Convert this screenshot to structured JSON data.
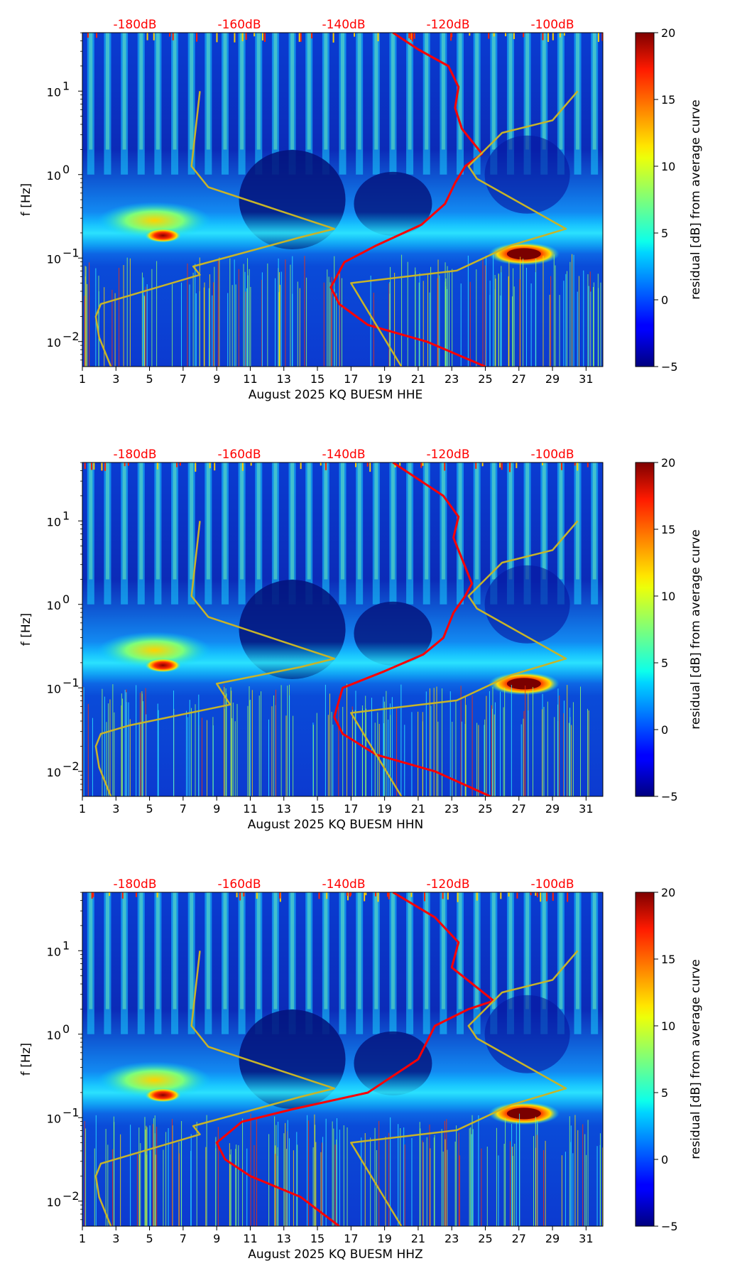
{
  "chart_data": [
    {
      "type": "heatmap",
      "title": "",
      "xlabel": "August 2025 KQ BUESM  HHE",
      "ylabel": "f [Hz]",
      "colorbar_label": "residual [dB] from average curve",
      "colorbar_ticks": [
        "20",
        "15",
        "10",
        "5",
        "0",
        "−5"
      ],
      "colorbar_range": [
        -5,
        20
      ],
      "x_ticks": [
        "1",
        "3",
        "5",
        "7",
        "9",
        "11",
        "13",
        "15",
        "17",
        "19",
        "21",
        "23",
        "25",
        "27",
        "29",
        "31"
      ],
      "y_tick_mantissa": [
        "10",
        "10",
        "10",
        "10"
      ],
      "y_tick_exponents": [
        "1",
        "0",
        "−1",
        "−2"
      ],
      "top_db_labels": [
        "-180dB",
        "-160dB",
        "-140dB",
        "-120dB",
        "-100dB"
      ],
      "xlim": [
        1,
        32
      ],
      "ylim_log10": [
        -2.3,
        1.7
      ],
      "series": [
        {
          "name": "red noise curve",
          "color": "#ff0000",
          "points": [
            [
              19.5,
              1.7
            ],
            [
              21,
              1.5
            ],
            [
              22.8,
              1.3
            ],
            [
              23.4,
              1.05
            ],
            [
              23.2,
              0.8
            ],
            [
              23.6,
              0.55
            ],
            [
              24.8,
              0.25
            ],
            [
              23.8,
              0.1
            ],
            [
              23.2,
              -0.1
            ],
            [
              22.6,
              -0.35
            ],
            [
              21.2,
              -0.6
            ],
            [
              18.5,
              -0.85
            ],
            [
              16.6,
              -1.05
            ],
            [
              15.8,
              -1.35
            ],
            [
              16.3,
              -1.55
            ],
            [
              18,
              -1.8
            ],
            [
              21.5,
              -2.0
            ],
            [
              25,
              -2.3
            ]
          ]
        },
        {
          "name": "olive model curve",
          "color": "#c8b428",
          "points": [
            [
              30.5,
              1.0
            ],
            [
              29,
              0.65
            ],
            [
              26,
              0.5
            ],
            [
              24,
              0.1
            ],
            [
              24.5,
              -0.05
            ],
            [
              29.8,
              -0.65
            ],
            [
              26.5,
              -0.85
            ],
            [
              23.3,
              -1.15
            ],
            [
              17,
              -1.3
            ],
            [
              20,
              -2.3
            ]
          ]
        },
        {
          "name": "olive model curve lower",
          "color": "#c8b428",
          "points": [
            [
              8,
              1.0
            ],
            [
              7.5,
              0.1
            ],
            [
              8.5,
              -0.15
            ],
            [
              16,
              -0.65
            ],
            [
              14,
              -0.75
            ],
            [
              7.6,
              -1.1
            ],
            [
              8,
              -1.2
            ],
            [
              3.8,
              -1.45
            ],
            [
              2.1,
              -1.55
            ],
            [
              1.8,
              -1.7
            ],
            [
              2,
              -1.95
            ],
            [
              2.7,
              -2.3
            ]
          ]
        }
      ]
    },
    {
      "type": "heatmap",
      "title": "",
      "xlabel": "August 2025 KQ BUESM  HHN",
      "ylabel": "f [Hz]",
      "colorbar_label": "residual [dB] from average curve",
      "colorbar_ticks": [
        "20",
        "15",
        "10",
        "5",
        "0",
        "−5"
      ],
      "colorbar_range": [
        -5,
        20
      ],
      "x_ticks": [
        "1",
        "3",
        "5",
        "7",
        "9",
        "11",
        "13",
        "15",
        "17",
        "19",
        "21",
        "23",
        "25",
        "27",
        "29",
        "31"
      ],
      "y_tick_mantissa": [
        "10",
        "10",
        "10",
        "10"
      ],
      "y_tick_exponents": [
        "1",
        "0",
        "−1",
        "−2"
      ],
      "top_db_labels": [
        "-180dB",
        "-160dB",
        "-140dB",
        "-120dB",
        "-100dB"
      ],
      "xlim": [
        1,
        32
      ],
      "ylim_log10": [
        -2.3,
        1.7
      ],
      "series": [
        {
          "name": "red noise curve",
          "color": "#ff0000",
          "points": [
            [
              19.5,
              1.7
            ],
            [
              21,
              1.5
            ],
            [
              22.5,
              1.3
            ],
            [
              23.4,
              1.05
            ],
            [
              23.1,
              0.8
            ],
            [
              24.2,
              0.25
            ],
            [
              23.8,
              0.1
            ],
            [
              23.1,
              -0.1
            ],
            [
              22.5,
              -0.4
            ],
            [
              21.3,
              -0.6
            ],
            [
              19,
              -0.8
            ],
            [
              16.5,
              -1.0
            ],
            [
              16.0,
              -1.35
            ],
            [
              16.5,
              -1.55
            ],
            [
              18.5,
              -1.8
            ],
            [
              22,
              -2.0
            ],
            [
              25.3,
              -2.3
            ]
          ]
        },
        {
          "name": "olive model curve",
          "color": "#c8b428",
          "points": [
            [
              30.5,
              1.0
            ],
            [
              29,
              0.65
            ],
            [
              26,
              0.5
            ],
            [
              24,
              0.1
            ],
            [
              24.5,
              -0.05
            ],
            [
              29.8,
              -0.65
            ],
            [
              26.5,
              -0.85
            ],
            [
              23.3,
              -1.15
            ],
            [
              17,
              -1.3
            ],
            [
              20,
              -2.3
            ]
          ]
        },
        {
          "name": "olive model curve lower",
          "color": "#c8b428",
          "points": [
            [
              8,
              1.0
            ],
            [
              7.5,
              0.1
            ],
            [
              8.5,
              -0.15
            ],
            [
              16,
              -0.65
            ],
            [
              14,
              -0.75
            ],
            [
              9,
              -0.95
            ],
            [
              9.8,
              -1.2
            ],
            [
              3.8,
              -1.45
            ],
            [
              2.1,
              -1.55
            ],
            [
              1.8,
              -1.7
            ],
            [
              2,
              -1.95
            ],
            [
              2.7,
              -2.3
            ]
          ]
        }
      ]
    },
    {
      "type": "heatmap",
      "title": "",
      "xlabel": "August 2025 KQ BUESM  HHZ",
      "ylabel": "f [Hz]",
      "colorbar_label": "residual [dB] from average curve",
      "colorbar_ticks": [
        "20",
        "15",
        "10",
        "5",
        "0",
        "−5"
      ],
      "colorbar_range": [
        -5,
        20
      ],
      "x_ticks": [
        "1",
        "3",
        "5",
        "7",
        "9",
        "11",
        "13",
        "15",
        "17",
        "19",
        "21",
        "23",
        "25",
        "27",
        "29",
        "31"
      ],
      "y_tick_mantissa": [
        "10",
        "10",
        "10",
        "10"
      ],
      "y_tick_exponents": [
        "1",
        "0",
        "−1",
        "−2"
      ],
      "top_db_labels": [
        "-180dB",
        "-160dB",
        "-140dB",
        "-120dB",
        "-100dB"
      ],
      "xlim": [
        1,
        32
      ],
      "ylim_log10": [
        -2.3,
        1.7
      ],
      "series": [
        {
          "name": "red noise curve",
          "color": "#ff0000",
          "points": [
            [
              19.5,
              1.7
            ],
            [
              22,
              1.4
            ],
            [
              23.4,
              1.1
            ],
            [
              23,
              0.8
            ],
            [
              25.5,
              0.4
            ],
            [
              24,
              0.3
            ],
            [
              22,
              0.1
            ],
            [
              21,
              -0.3
            ],
            [
              18,
              -0.7
            ],
            [
              13.5,
              -0.9
            ],
            [
              10.5,
              -1.05
            ],
            [
              9,
              -1.3
            ],
            [
              9.5,
              -1.5
            ],
            [
              11,
              -1.7
            ],
            [
              14,
              -1.95
            ],
            [
              16.3,
              -2.3
            ]
          ]
        },
        {
          "name": "olive model curve",
          "color": "#c8b428",
          "points": [
            [
              30.5,
              1.0
            ],
            [
              29,
              0.65
            ],
            [
              26,
              0.5
            ],
            [
              24,
              0.1
            ],
            [
              24.5,
              -0.05
            ],
            [
              29.8,
              -0.65
            ],
            [
              26.5,
              -0.85
            ],
            [
              23.3,
              -1.15
            ],
            [
              17,
              -1.3
            ],
            [
              20,
              -2.3
            ]
          ]
        },
        {
          "name": "olive model curve lower",
          "color": "#c8b428",
          "points": [
            [
              8,
              1.0
            ],
            [
              7.5,
              0.1
            ],
            [
              8.5,
              -0.15
            ],
            [
              16,
              -0.65
            ],
            [
              14,
              -0.75
            ],
            [
              7.6,
              -1.1
            ],
            [
              8,
              -1.2
            ],
            [
              3.8,
              -1.45
            ],
            [
              2.1,
              -1.55
            ],
            [
              1.8,
              -1.7
            ],
            [
              2,
              -1.95
            ],
            [
              2.7,
              -2.3
            ]
          ]
        }
      ]
    }
  ]
}
